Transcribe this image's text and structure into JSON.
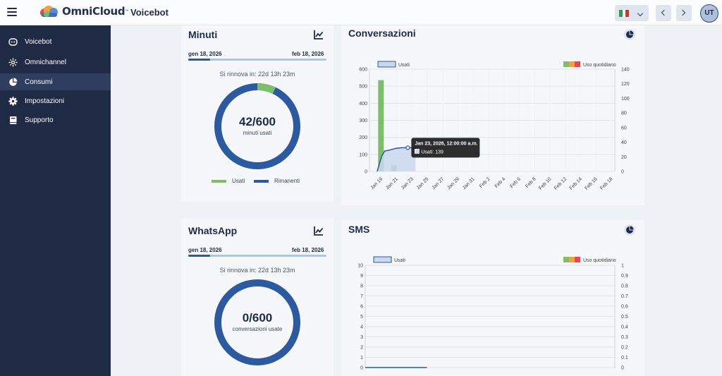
{
  "header": {
    "app_name": "OmniCloud",
    "trademark": "™",
    "page_title": "Voicebot",
    "user_initials": "UT",
    "language": "italian-flag-icon"
  },
  "sidebar": {
    "items": [
      {
        "label": "Voicebot",
        "icon": "robot-icon",
        "active": false
      },
      {
        "label": "Omnichannel",
        "icon": "network-icon",
        "active": false
      },
      {
        "label": "Consumi",
        "icon": "pie-chart-icon",
        "active": true
      },
      {
        "label": "Impostazioni",
        "icon": "gear-icon",
        "active": false
      },
      {
        "label": "Supporto",
        "icon": "book-icon",
        "active": false
      }
    ]
  },
  "colors": {
    "sidebar_bg": "#1f2a44",
    "sidebar_active": "#2f3d5e",
    "primary": "#2c5aa0",
    "used_green": "#7cbf6b",
    "range_light": "#a9c6ea",
    "area_fill": "#c9d8ec"
  },
  "minuti": {
    "title": "Minuti",
    "date_start": "gen 18, 2026",
    "date_end": "feb 18, 2026",
    "period_progress": 0.16,
    "renew": "Si rinnova in: 22d 13h 23m",
    "value": "42/600",
    "sub": "minuti usati",
    "used": 42,
    "total": 600,
    "legend_used": "Usati",
    "legend_remaining": "Rimanenti"
  },
  "whatsapp": {
    "title": "WhatsApp",
    "date_start": "gen 18, 2026",
    "date_end": "feb 18, 2026",
    "period_progress": 0.16,
    "renew": "Si rinnova in: 22d 13h 23m",
    "value": "0/600",
    "sub": "conversazioni usate",
    "used": 0,
    "total": 600
  },
  "chart_data": [
    {
      "type": "bar",
      "title": "Conversazioni",
      "legend_left": "Usati",
      "legend_right": "Uso quotidiano",
      "x": [
        "Jan 19",
        "Jan 21",
        "Jan 23",
        "Jan 25",
        "Jan 27",
        "Jan 29",
        "Jan 31",
        "Feb 2",
        "Feb 4",
        "Feb 6",
        "Feb 8",
        "Feb 10",
        "Feb 12",
        "Feb 14",
        "Feb 16",
        "Feb 18"
      ],
      "y_left": {
        "ticks": [
          0,
          100,
          200,
          300,
          400,
          500,
          600
        ],
        "max": 600
      },
      "y_right": {
        "ticks": [
          0,
          20,
          40,
          60,
          80,
          100,
          120,
          140
        ],
        "max": 140
      },
      "cumulative": [
        [
          0,
          0
        ],
        [
          0.3,
          90
        ],
        [
          0.5,
          120
        ],
        [
          0.8,
          125
        ],
        [
          1.2,
          135
        ],
        [
          1.6,
          139
        ],
        [
          2.2,
          139
        ],
        [
          2.5,
          139
        ]
      ],
      "daily": [
        [
          0.25,
          125
        ],
        [
          1.1,
          8
        ]
      ],
      "tooltip": {
        "title": "Jan 23, 2026, 12:00:00 a.m.",
        "body": "Usati: 139",
        "index": 2
      }
    },
    {
      "type": "bar",
      "title": "SMS",
      "legend_left": "Usati",
      "legend_right": "Uso quotidiano",
      "x": [],
      "y_left": {
        "ticks": [
          0,
          1,
          2,
          3,
          4,
          5,
          6,
          7,
          8,
          9,
          10
        ],
        "max": 10
      },
      "y_right": {
        "ticks": [
          "0",
          "0.1",
          "0.2",
          "0.3",
          "0.4",
          "0.5",
          "0.6",
          "0.7",
          "0.8",
          "0.9",
          "1"
        ],
        "max": 1
      },
      "cumulative": [
        [
          0,
          0
        ],
        [
          2.5,
          0
        ]
      ],
      "daily": []
    }
  ]
}
